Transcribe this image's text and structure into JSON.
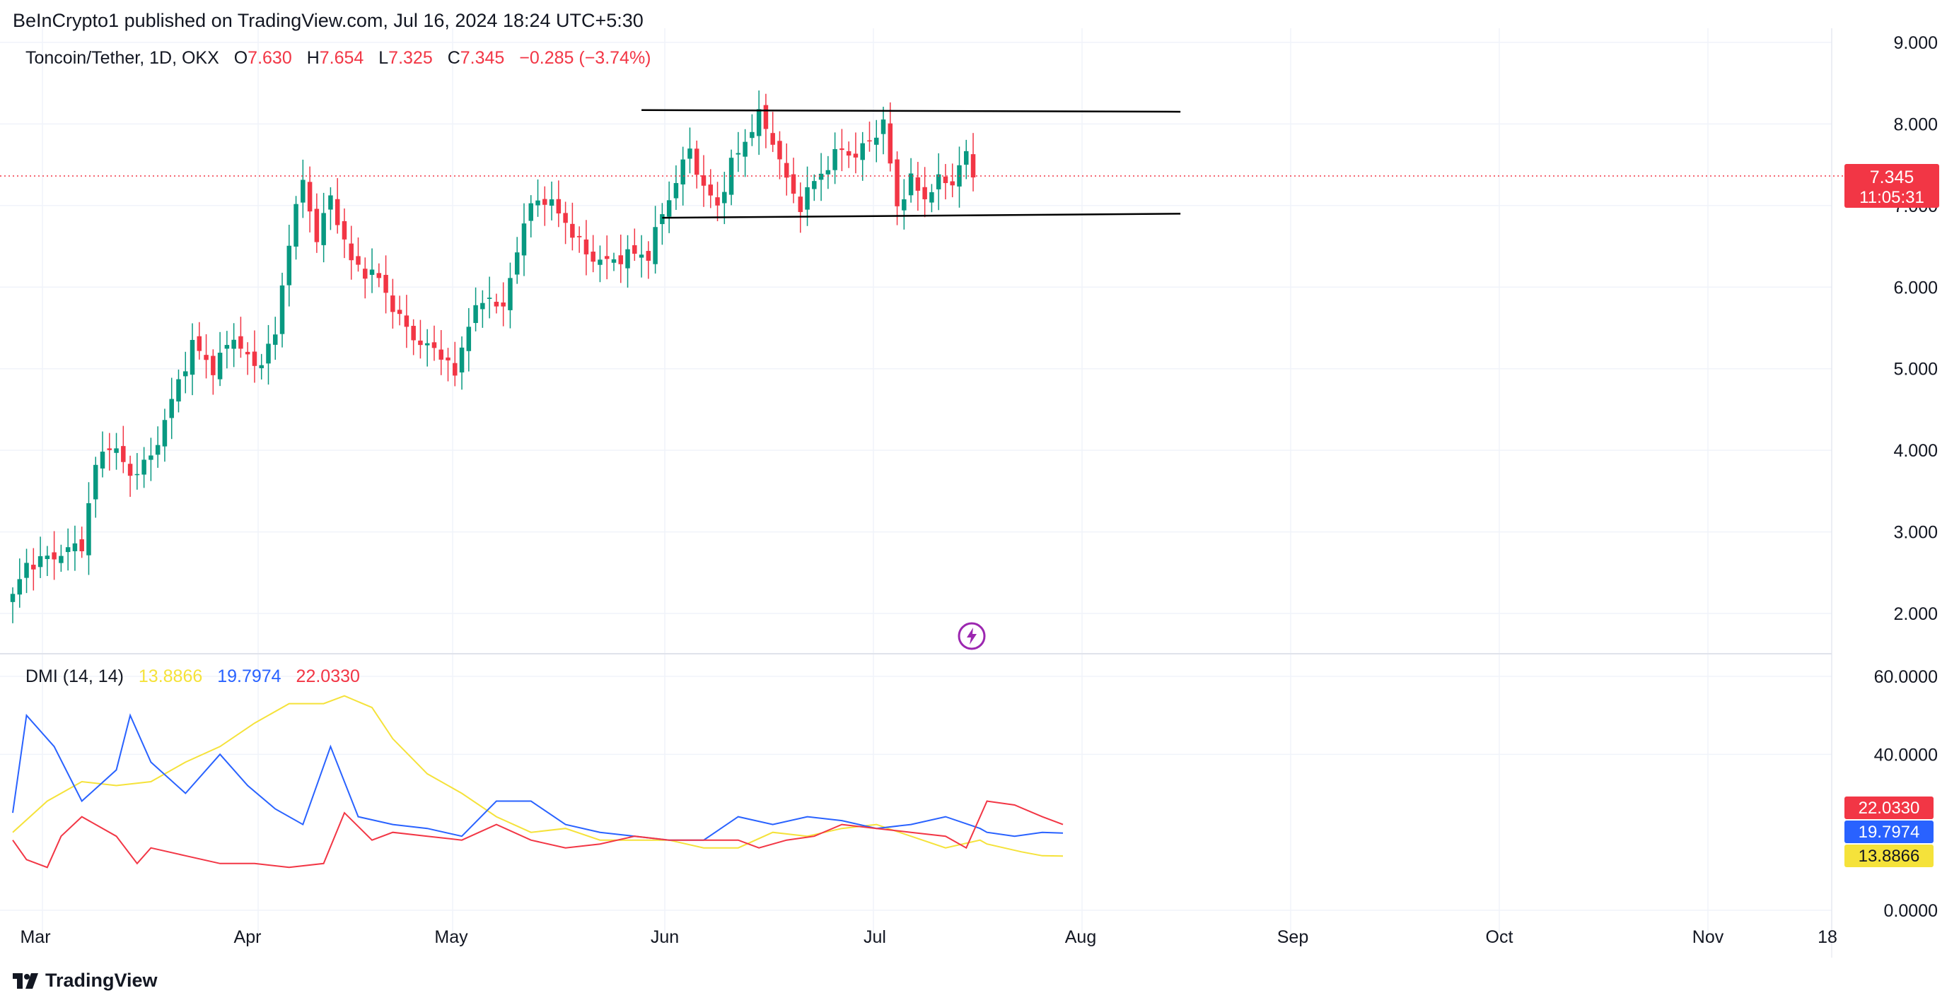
{
  "header": {
    "publisher": "BeInCrypto1 published on TradingView.com, Jul 16, 2024 18:24 UTC+5:30"
  },
  "legend": {
    "symbol": "Toncoin/Tether, 1D, OKX",
    "o_label": "O",
    "o_value": "7.630",
    "h_label": "H",
    "h_value": "7.654",
    "l_label": "L",
    "l_value": "7.325",
    "c_label": "C",
    "c_value": "7.345",
    "change": "−0.285 (−3.74%)"
  },
  "dmi_legend": {
    "name": "DMI (14, 14)",
    "adx": "13.8866",
    "plus_di": "19.7974",
    "minus_di": "22.0330"
  },
  "footer": {
    "brand": "TradingView"
  },
  "colors": {
    "up": "#089981",
    "down": "#f23645",
    "adx": "#f5e23a",
    "plus_di": "#2962ff",
    "minus_di": "#f23645",
    "grid": "#f0f3fa",
    "axis_text": "#131722"
  },
  "chart_data": [
    {
      "type": "candlestick",
      "title": "Toncoin/Tether, 1D, OKX",
      "y_ticks": [
        "9.000",
        "8.000",
        "7.000",
        "6.000",
        "5.000",
        "4.000",
        "3.000",
        "2.000"
      ],
      "ylim": [
        1.5,
        9.0
      ],
      "x_ticks": [
        "Mar",
        "Apr",
        "May",
        "Jun",
        "Jul",
        "Aug",
        "Sep",
        "Oct",
        "Nov",
        "18"
      ],
      "last_price_label": "7.345",
      "countdown_label": "11:05:31",
      "date_range": [
        "2024-02-28",
        "2024-07-16"
      ],
      "close_points": [
        {
          "date": "2024-02-28",
          "close": 2.2
        },
        {
          "date": "2024-03-01",
          "close": 2.6
        },
        {
          "date": "2024-03-05",
          "close": 2.7
        },
        {
          "date": "2024-03-09",
          "close": 2.85
        },
        {
          "date": "2024-03-11",
          "close": 3.8
        },
        {
          "date": "2024-03-13",
          "close": 4.1
        },
        {
          "date": "2024-03-16",
          "close": 3.7
        },
        {
          "date": "2024-03-19",
          "close": 3.9
        },
        {
          "date": "2024-03-22",
          "close": 4.6
        },
        {
          "date": "2024-03-25",
          "close": 5.3
        },
        {
          "date": "2024-03-28",
          "close": 5.0
        },
        {
          "date": "2024-03-31",
          "close": 5.4
        },
        {
          "date": "2024-04-03",
          "close": 5.0
        },
        {
          "date": "2024-04-06",
          "close": 5.4
        },
        {
          "date": "2024-04-08",
          "close": 6.6
        },
        {
          "date": "2024-04-10",
          "close": 7.3
        },
        {
          "date": "2024-04-12",
          "close": 6.6
        },
        {
          "date": "2024-04-14",
          "close": 7.1
        },
        {
          "date": "2024-04-17",
          "close": 6.3
        },
        {
          "date": "2024-04-21",
          "close": 6.1
        },
        {
          "date": "2024-04-24",
          "close": 5.6
        },
        {
          "date": "2024-04-27",
          "close": 5.3
        },
        {
          "date": "2024-04-30",
          "close": 5.2
        },
        {
          "date": "2024-05-02",
          "close": 4.9
        },
        {
          "date": "2024-05-04",
          "close": 5.6
        },
        {
          "date": "2024-05-07",
          "close": 5.9
        },
        {
          "date": "2024-05-09",
          "close": 5.7
        },
        {
          "date": "2024-05-11",
          "close": 6.5
        },
        {
          "date": "2024-05-13",
          "close": 7.0
        },
        {
          "date": "2024-05-15",
          "close": 7.1
        },
        {
          "date": "2024-05-18",
          "close": 6.8
        },
        {
          "date": "2024-05-21",
          "close": 6.4
        },
        {
          "date": "2024-05-24",
          "close": 6.3
        },
        {
          "date": "2024-05-27",
          "close": 6.4
        },
        {
          "date": "2024-05-30",
          "close": 6.4
        },
        {
          "date": "2024-06-01",
          "close": 6.9
        },
        {
          "date": "2024-06-03",
          "close": 7.3
        },
        {
          "date": "2024-06-05",
          "close": 7.7
        },
        {
          "date": "2024-06-07",
          "close": 7.2
        },
        {
          "date": "2024-06-09",
          "close": 7.0
        },
        {
          "date": "2024-06-11",
          "close": 7.5
        },
        {
          "date": "2024-06-13",
          "close": 7.8
        },
        {
          "date": "2024-06-15",
          "close": 8.1
        },
        {
          "date": "2024-06-17",
          "close": 7.8
        },
        {
          "date": "2024-06-19",
          "close": 7.3
        },
        {
          "date": "2024-06-21",
          "close": 7.0
        },
        {
          "date": "2024-06-23",
          "close": 7.3
        },
        {
          "date": "2024-06-25",
          "close": 7.5
        },
        {
          "date": "2024-06-27",
          "close": 7.7
        },
        {
          "date": "2024-06-29",
          "close": 7.6
        },
        {
          "date": "2024-07-01",
          "close": 7.8
        },
        {
          "date": "2024-07-03",
          "close": 8.0
        },
        {
          "date": "2024-07-05",
          "close": 7.0
        },
        {
          "date": "2024-07-07",
          "close": 7.3
        },
        {
          "date": "2024-07-09",
          "close": 7.1
        },
        {
          "date": "2024-07-11",
          "close": 7.3
        },
        {
          "date": "2024-07-13",
          "close": 7.3
        },
        {
          "date": "2024-07-15",
          "close": 7.63
        },
        {
          "date": "2024-07-16",
          "close": 7.345
        }
      ],
      "trendlines": [
        {
          "start": {
            "date": "2024-05-29",
            "price": 8.17
          },
          "end": {
            "date": "2024-08-15",
            "price": 8.15
          }
        },
        {
          "start": {
            "date": "2024-06-01",
            "price": 6.85
          },
          "end": {
            "date": "2024-08-15",
            "price": 6.9
          }
        }
      ]
    },
    {
      "type": "line",
      "title": "DMI (14, 14)",
      "y_ticks": [
        "60.0000",
        "40.0000",
        "0.0000"
      ],
      "ylim": [
        0,
        64
      ],
      "last_value_labels": [
        "22.0330",
        "19.7974",
        "13.8866"
      ],
      "series": [
        {
          "name": "ADX",
          "values": [
            [
              0,
              20
            ],
            [
              5,
              28
            ],
            [
              10,
              33
            ],
            [
              15,
              32
            ],
            [
              20,
              33
            ],
            [
              25,
              38
            ],
            [
              30,
              42
            ],
            [
              35,
              48
            ],
            [
              40,
              53
            ],
            [
              45,
              53
            ],
            [
              48,
              55
            ],
            [
              52,
              52
            ],
            [
              55,
              44
            ],
            [
              60,
              35
            ],
            [
              65,
              30
            ],
            [
              70,
              24
            ],
            [
              75,
              20
            ],
            [
              80,
              21
            ],
            [
              85,
              18
            ],
            [
              90,
              18
            ],
            [
              95,
              18
            ],
            [
              100,
              16
            ],
            [
              105,
              16
            ],
            [
              110,
              20
            ],
            [
              115,
              19
            ],
            [
              120,
              21
            ],
            [
              125,
              22
            ],
            [
              130,
              19
            ],
            [
              135,
              16
            ],
            [
              140,
              18
            ],
            [
              141,
              17
            ],
            [
              146,
              15
            ],
            [
              149,
              14
            ],
            [
              152,
              13.9
            ]
          ]
        },
        {
          "name": "+DI",
          "values": [
            [
              0,
              25
            ],
            [
              2,
              50
            ],
            [
              6,
              42
            ],
            [
              10,
              28
            ],
            [
              15,
              36
            ],
            [
              17,
              50
            ],
            [
              20,
              38
            ],
            [
              25,
              30
            ],
            [
              30,
              40
            ],
            [
              34,
              32
            ],
            [
              38,
              26
            ],
            [
              42,
              22
            ],
            [
              46,
              42
            ],
            [
              50,
              24
            ],
            [
              55,
              22
            ],
            [
              60,
              21
            ],
            [
              65,
              19
            ],
            [
              70,
              28
            ],
            [
              75,
              28
            ],
            [
              80,
              22
            ],
            [
              85,
              20
            ],
            [
              90,
              19
            ],
            [
              95,
              18
            ],
            [
              100,
              18
            ],
            [
              105,
              24
            ],
            [
              110,
              22
            ],
            [
              115,
              24
            ],
            [
              120,
              23
            ],
            [
              125,
              21
            ],
            [
              130,
              22
            ],
            [
              135,
              24
            ],
            [
              140,
              21
            ],
            [
              141,
              20
            ],
            [
              145,
              19
            ],
            [
              149,
              20
            ],
            [
              152,
              19.8
            ]
          ]
        },
        {
          "name": "-DI",
          "values": [
            [
              0,
              18
            ],
            [
              2,
              13
            ],
            [
              5,
              11
            ],
            [
              7,
              19
            ],
            [
              10,
              24
            ],
            [
              15,
              19
            ],
            [
              18,
              12
            ],
            [
              20,
              16
            ],
            [
              25,
              14
            ],
            [
              30,
              12
            ],
            [
              35,
              12
            ],
            [
              40,
              11
            ],
            [
              45,
              12
            ],
            [
              48,
              25
            ],
            [
              52,
              18
            ],
            [
              55,
              20
            ],
            [
              60,
              19
            ],
            [
              65,
              18
            ],
            [
              70,
              22
            ],
            [
              75,
              18
            ],
            [
              80,
              16
            ],
            [
              85,
              17
            ],
            [
              90,
              19
            ],
            [
              95,
              18
            ],
            [
              100,
              18
            ],
            [
              105,
              18
            ],
            [
              108,
              16
            ],
            [
              112,
              18
            ],
            [
              116,
              19
            ],
            [
              120,
              22
            ],
            [
              125,
              21
            ],
            [
              130,
              20
            ],
            [
              135,
              19
            ],
            [
              138,
              16
            ],
            [
              141,
              28
            ],
            [
              145,
              27
            ],
            [
              149,
              24
            ],
            [
              152,
              22
            ]
          ]
        }
      ]
    }
  ]
}
